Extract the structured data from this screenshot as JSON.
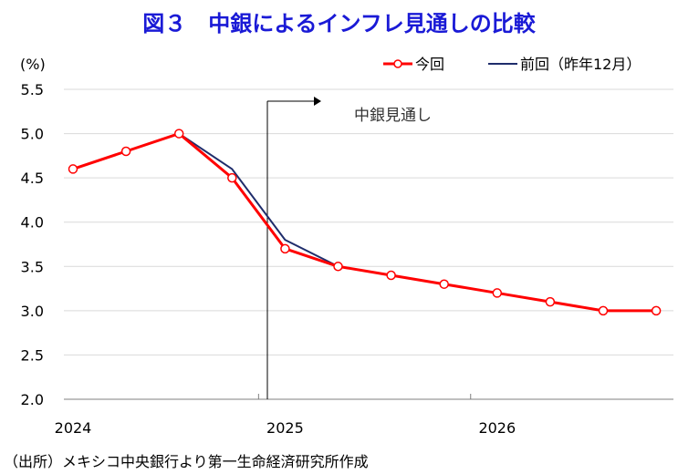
{
  "chart_data": {
    "type": "line",
    "title": "図３　中銀によるインフレ見通しの比較",
    "ylabel": "(%)",
    "ylim": [
      2.0,
      5.5
    ],
    "yticks": [
      "2.0",
      "2.5",
      "3.0",
      "3.5",
      "4.0",
      "4.5",
      "5.0",
      "5.5"
    ],
    "xticks": [
      "2024",
      "2025",
      "2026"
    ],
    "x": [
      "2024Q1",
      "2024Q2",
      "2024Q3",
      "2024Q4",
      "2025Q1",
      "2025Q2",
      "2025Q3",
      "2025Q4",
      "2026Q1",
      "2026Q2",
      "2026Q3",
      "2026Q4"
    ],
    "series": [
      {
        "name": "今回",
        "values": [
          4.6,
          4.8,
          5.0,
          4.5,
          3.7,
          3.5,
          3.4,
          3.3,
          3.2,
          3.1,
          3.0,
          3.0
        ],
        "color": "#ff0000",
        "marker": "circle"
      },
      {
        "name": "前回（昨年12月）",
        "values": [
          4.6,
          4.8,
          5.0,
          4.6,
          3.8,
          3.5,
          3.4,
          3.3,
          3.2,
          3.1,
          3.0,
          3.0
        ],
        "color": "#1f2d6b",
        "marker": "none"
      }
    ],
    "annotation": "中銀見通し",
    "grid": true,
    "legend": "top-right",
    "source": "（出所）メキシコ中央銀行より第一生命経済研究所作成"
  }
}
